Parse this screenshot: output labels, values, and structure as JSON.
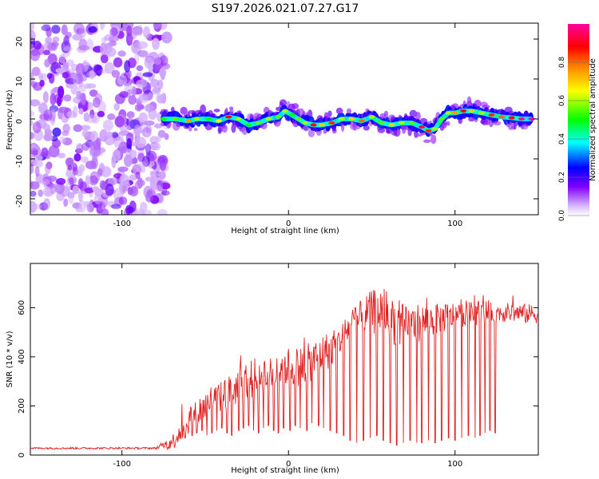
{
  "figure": {
    "title": "S197.2026.021.07.27.G17"
  },
  "chart_data": [
    {
      "type": "heatmap",
      "name": "spectrogram",
      "xlabel": "Height of straight line (km)",
      "ylabel": "Frequency (Hz)",
      "xlim": [
        -155,
        150
      ],
      "ylim": [
        -24,
        24
      ],
      "xticks": [
        -100,
        0,
        100
      ],
      "yticks": [
        -20,
        -10,
        0,
        10,
        20
      ],
      "colorbar": {
        "label": "Normalized spectral amplitude",
        "range": [
          0.0,
          1.0
        ],
        "ticks": [
          0.0,
          0.2,
          0.4,
          0.6,
          0.8
        ],
        "colors": [
          "#ffffff",
          "#8000ff",
          "#0000ff",
          "#00ffff",
          "#00ff00",
          "#ffff00",
          "#ff8000",
          "#ff0000",
          "#ff00a0"
        ]
      },
      "noise_region_x": [
        -155,
        -73
      ],
      "signal_track": {
        "x": [
          -75,
          -68,
          -60,
          -55,
          -48,
          -42,
          -36,
          -30,
          -24,
          -18,
          -12,
          -6,
          -2,
          2,
          6,
          10,
          15,
          20,
          26,
          32,
          38,
          44,
          50,
          56,
          62,
          68,
          74,
          80,
          84,
          88,
          92,
          96,
          100,
          105,
          110,
          116,
          122,
          128,
          134,
          140,
          146
        ],
        "frequency_hz": [
          0,
          0,
          -0.5,
          0,
          0,
          -0.5,
          0.5,
          0,
          -1.5,
          -1,
          0,
          0.5,
          2,
          1,
          0,
          -1,
          -1.5,
          -1.5,
          -1,
          0,
          0,
          -0.5,
          0.5,
          -1,
          -1.5,
          -1,
          -1,
          -2,
          -3,
          -2.5,
          0,
          1.5,
          1.5,
          2,
          2,
          1.5,
          1,
          0.5,
          0.3,
          0,
          0
        ],
        "peak_amplitude": [
          0.5,
          0.55,
          0.75,
          0.6,
          0.5,
          0.65,
          0.9,
          0.6,
          0.5,
          0.55,
          0.6,
          0.55,
          0.6,
          0.5,
          0.55,
          0.6,
          0.9,
          0.7,
          0.85,
          0.6,
          0.7,
          0.8,
          0.6,
          0.55,
          0.7,
          0.6,
          0.55,
          0.95,
          0.85,
          0.6,
          0.55,
          0.6,
          0.75,
          0.9,
          0.7,
          0.6,
          0.85,
          0.8,
          0.9,
          1.0,
          1.0
        ]
      }
    },
    {
      "type": "line",
      "name": "snr",
      "xlabel": "Height of straight line (km)",
      "ylabel": "SNR (10 * v/v)",
      "xlim": [
        -155,
        150
      ],
      "ylim": [
        0,
        780
      ],
      "xticks": [
        -100,
        0,
        100
      ],
      "yticks": [
        0,
        200,
        400,
        600
      ],
      "color": "#e02020",
      "series": [
        {
          "name": "SNR",
          "envelope_x": [
            -155,
            -140,
            -120,
            -100,
            -80,
            -70,
            -66,
            -62,
            -58,
            -54,
            -50,
            -46,
            -42,
            -38,
            -34,
            -30,
            -26,
            -22,
            -18,
            -14,
            -10,
            -6,
            -2,
            2,
            6,
            10,
            14,
            18,
            22,
            26,
            30,
            34,
            38,
            42,
            46,
            50,
            54,
            58,
            62,
            66,
            70,
            74,
            78,
            82,
            86,
            90,
            94,
            98,
            102,
            106,
            110,
            114,
            118,
            122,
            126,
            130,
            134,
            138,
            142,
            146,
            150
          ],
          "envelope_y": [
            28,
            28,
            28,
            28,
            28,
            50,
            90,
            120,
            160,
            180,
            200,
            230,
            230,
            250,
            260,
            280,
            300,
            310,
            320,
            330,
            340,
            350,
            360,
            360,
            360,
            370,
            380,
            400,
            420,
            430,
            460,
            500,
            530,
            550,
            570,
            580,
            590,
            590,
            560,
            530,
            520,
            530,
            540,
            545,
            550,
            555,
            560,
            565,
            570,
            575,
            575,
            580,
            580,
            580,
            580,
            580,
            580,
            580,
            575,
            575,
            575
          ],
          "noise_amplitude": [
            4,
            4,
            4,
            4,
            4,
            30,
            50,
            50,
            60,
            60,
            60,
            60,
            60,
            70,
            70,
            70,
            80,
            80,
            80,
            80,
            80,
            80,
            80,
            80,
            80,
            80,
            80,
            80,
            80,
            70,
            60,
            60,
            60,
            70,
            80,
            90,
            100,
            100,
            100,
            100,
            90,
            80,
            80,
            70,
            70,
            60,
            60,
            60,
            50,
            50,
            50,
            50,
            50,
            40,
            40,
            40,
            40,
            40,
            40,
            40,
            40
          ],
          "dropout_x": [
            -62,
            -58,
            -55,
            -52,
            -49,
            -46,
            -43,
            -40,
            -37,
            -34,
            -30,
            -27,
            -24,
            -21,
            -18,
            -15,
            -12,
            -9,
            -6,
            -3,
            1,
            4,
            7,
            11,
            14,
            18,
            21,
            25,
            29,
            33,
            37,
            41,
            45,
            49,
            53,
            57,
            61,
            65,
            69,
            73,
            77,
            80,
            84,
            88,
            92,
            96,
            100,
            104,
            108,
            112,
            115,
            118,
            121,
            124
          ],
          "dropout_y": [
            70,
            80,
            90,
            100,
            80,
            90,
            100,
            110,
            90,
            80,
            100,
            110,
            120,
            100,
            90,
            110,
            120,
            100,
            90,
            110,
            100,
            120,
            110,
            100,
            130,
            120,
            110,
            100,
            90,
            80,
            60,
            50,
            60,
            70,
            80,
            60,
            50,
            40,
            50,
            60,
            50,
            50,
            60,
            50,
            60,
            70,
            60,
            70,
            80,
            70,
            80,
            90,
            100,
            90
          ]
        }
      ]
    }
  ]
}
